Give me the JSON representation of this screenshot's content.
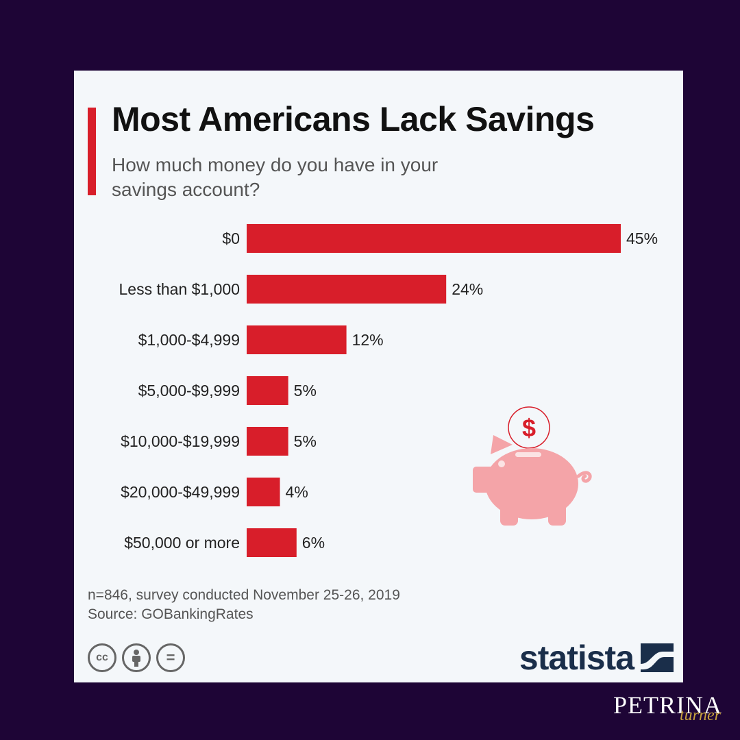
{
  "chart_data": {
    "type": "bar",
    "orientation": "horizontal",
    "title": "Most Americans Lack Savings",
    "subtitle": "How much money do you have in your savings account?",
    "categories": [
      "$0",
      "Less than $1,000",
      "$1,000-$4,999",
      "$5,000-$9,999",
      "$10,000-$19,999",
      "$20,000-$49,999",
      "$50,000 or more"
    ],
    "values": [
      45,
      24,
      12,
      5,
      5,
      4,
      6
    ],
    "value_labels": [
      "45%",
      "24%",
      "12%",
      "5%",
      "5%",
      "4%",
      "6%"
    ],
    "unit": "%",
    "xlim": [
      0,
      45
    ],
    "grid": false,
    "bar_color": "#d81e2a"
  },
  "footnote": {
    "note": "n=846, survey conducted November 25-26, 2019",
    "source": "Source: GOBankingRates"
  },
  "license_icons": [
    "cc-icon",
    "attribution-icon",
    "no-derivatives-icon"
  ],
  "license_glyphs": [
    "cc",
    "",
    "="
  ],
  "brand": {
    "name": "statista",
    "icon": "statista-logo-icon"
  },
  "decoration": {
    "icon": "piggy-bank-icon",
    "coin_symbol": "$"
  },
  "watermark": {
    "main": "PETRINA",
    "sub": "turner"
  },
  "colors": {
    "background": "#1e0536",
    "card": "#f4f7fa",
    "accent": "#d81e2a",
    "piggy": "#f4a4a8",
    "brand": "#1a2e4a",
    "watermark_sub": "#c7a13d"
  }
}
